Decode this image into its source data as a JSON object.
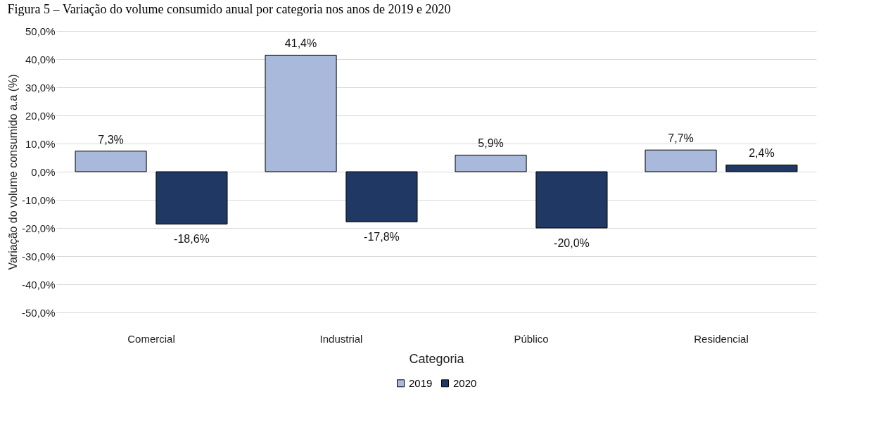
{
  "chart_data": {
    "type": "bar",
    "title": "Figura 5 – Variação do volume consumido anual por categoria nos anos de 2019 e 2020",
    "xlabel": "Categoria",
    "ylabel": "Variação do volume consumido a.a (%)",
    "categories": [
      "Comercial",
      "Industrial",
      "Público",
      "Residencial"
    ],
    "series": [
      {
        "name": "2019",
        "color": "#a9b9dc",
        "values": [
          7.3,
          41.4,
          5.9,
          7.7
        ],
        "value_labels": [
          "7,3%",
          "41,4%",
          "5,9%",
          "7,7%"
        ]
      },
      {
        "name": "2020",
        "color": "#203864",
        "values": [
          -18.6,
          -17.8,
          -20.0,
          2.4
        ],
        "value_labels": [
          "-18,6%",
          "-17,8%",
          "-20,0%",
          "2,4%"
        ]
      }
    ],
    "ylim": [
      -50,
      50
    ],
    "yticks": [
      {
        "value": -50,
        "label": "-50,0%"
      },
      {
        "value": -40,
        "label": "-40,0%"
      },
      {
        "value": -30,
        "label": "-30,0%"
      },
      {
        "value": -20,
        "label": "-20,0%"
      },
      {
        "value": -10,
        "label": "-10,0%"
      },
      {
        "value": 0,
        "label": "0,0%"
      },
      {
        "value": 10,
        "label": "10,0%"
      },
      {
        "value": 20,
        "label": "20,0%"
      },
      {
        "value": 30,
        "label": "30,0%"
      },
      {
        "value": 40,
        "label": "40,0%"
      },
      {
        "value": 50,
        "label": "50,0%"
      }
    ],
    "grid": "y",
    "legend": "bottom"
  }
}
